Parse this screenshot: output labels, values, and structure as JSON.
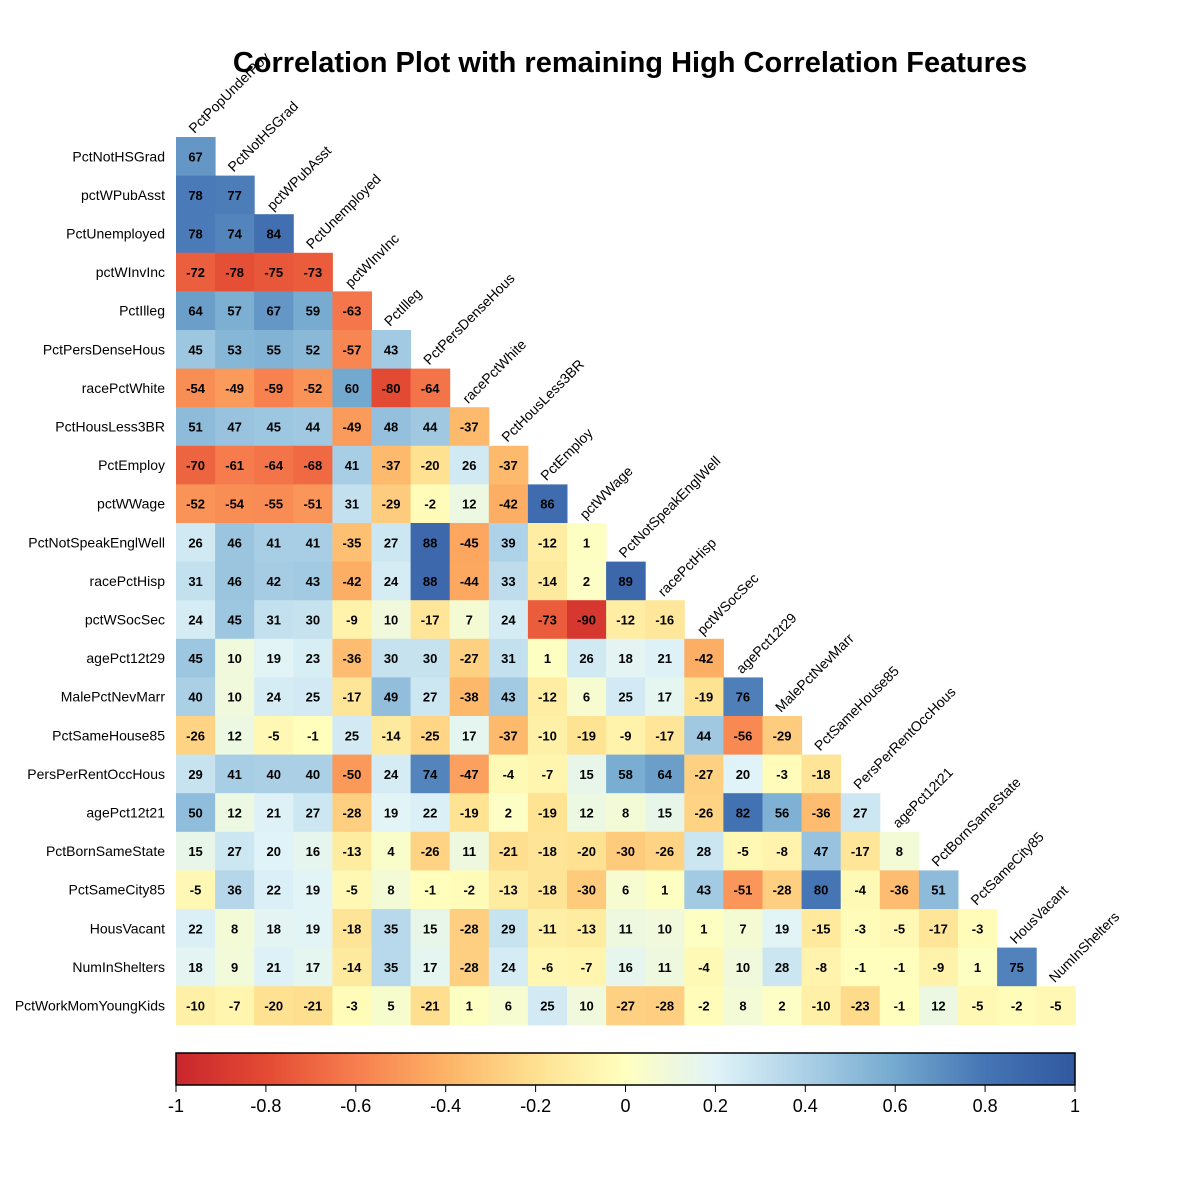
{
  "chart_data": {
    "type": "heatmap",
    "title": "Correlation Plot with remaining High Correlation Features",
    "columns": [
      "PctPopUnderPov",
      "PctNotHSGrad",
      "pctWPubAsst",
      "PctUnemployed",
      "pctWInvInc",
      "PctIlleg",
      "PctPersDenseHous",
      "racePctWhite",
      "PctHousLess3BR",
      "PctEmploy",
      "pctWWage",
      "PctNotSpeakEnglWell",
      "racePctHisp",
      "pctWSocSec",
      "agePct12t29",
      "MalePctNevMarr",
      "PctSameHouse85",
      "PersPerRentOccHous",
      "agePct12t21",
      "PctBornSameState",
      "PctSameCity85",
      "HousVacant",
      "NumInShelters"
    ],
    "rows": [
      "PctNotHSGrad",
      "pctWPubAsst",
      "PctUnemployed",
      "pctWInvInc",
      "PctIlleg",
      "PctPersDenseHous",
      "racePctWhite",
      "PctHousLess3BR",
      "PctEmploy",
      "pctWWage",
      "PctNotSpeakEnglWell",
      "racePctHisp",
      "pctWSocSec",
      "agePct12t29",
      "MalePctNevMarr",
      "PctSameHouse85",
      "PersPerRentOccHous",
      "agePct12t21",
      "PctBornSameState",
      "PctSameCity85",
      "HousVacant",
      "NumInShelters",
      "PctWorkMomYoungKids"
    ],
    "values": [
      [
        67
      ],
      [
        78,
        77
      ],
      [
        78,
        74,
        84
      ],
      [
        -72,
        -78,
        -75,
        -73
      ],
      [
        64,
        57,
        67,
        59,
        -63
      ],
      [
        45,
        53,
        55,
        52,
        -57,
        43
      ],
      [
        -54,
        -49,
        -59,
        -52,
        60,
        -80,
        -64
      ],
      [
        51,
        47,
        45,
        44,
        -49,
        48,
        44,
        -37
      ],
      [
        -70,
        -61,
        -64,
        -68,
        41,
        -37,
        -20,
        26,
        -37
      ],
      [
        -52,
        -54,
        -55,
        -51,
        31,
        -29,
        -2,
        12,
        -42,
        86
      ],
      [
        26,
        46,
        41,
        41,
        -35,
        27,
        88,
        -45,
        39,
        -12,
        1
      ],
      [
        31,
        46,
        42,
        43,
        -42,
        24,
        88,
        -44,
        33,
        -14,
        2,
        89
      ],
      [
        24,
        45,
        31,
        30,
        -9,
        10,
        -17,
        7,
        24,
        -73,
        -90,
        -12,
        -16
      ],
      [
        45,
        10,
        19,
        23,
        -36,
        30,
        30,
        -27,
        31,
        1,
        26,
        18,
        21,
        -42
      ],
      [
        40,
        10,
        24,
        25,
        -17,
        49,
        27,
        -38,
        43,
        -12,
        6,
        25,
        17,
        -19,
        76
      ],
      [
        -26,
        12,
        -5,
        -1,
        25,
        -14,
        -25,
        17,
        -37,
        -10,
        -19,
        -9,
        -17,
        44,
        -56,
        -29
      ],
      [
        29,
        41,
        40,
        40,
        -50,
        24,
        74,
        -47,
        -4,
        -7,
        15,
        58,
        64,
        -27,
        20,
        -3,
        -18
      ],
      [
        50,
        12,
        21,
        27,
        -28,
        19,
        22,
        -19,
        2,
        -19,
        12,
        8,
        15,
        -26,
        82,
        56,
        -36,
        27
      ],
      [
        15,
        27,
        20,
        16,
        -13,
        4,
        -26,
        11,
        -21,
        -18,
        -20,
        -30,
        -26,
        28,
        -5,
        -8,
        47,
        -17,
        8
      ],
      [
        -5,
        36,
        22,
        19,
        -5,
        8,
        -1,
        -2,
        -13,
        -18,
        -30,
        6,
        1,
        43,
        -51,
        -28,
        80,
        -4,
        -36,
        51
      ],
      [
        22,
        8,
        18,
        19,
        -18,
        35,
        15,
        -28,
        29,
        -11,
        -13,
        11,
        10,
        1,
        7,
        19,
        -15,
        -3,
        -5,
        -17,
        -3
      ],
      [
        18,
        9,
        21,
        17,
        -14,
        35,
        17,
        -28,
        24,
        -6,
        -7,
        16,
        11,
        -4,
        10,
        28,
        -8,
        -1,
        -1,
        -9,
        1,
        75
      ],
      [
        -10,
        -7,
        -20,
        -21,
        -3,
        5,
        -21,
        1,
        6,
        25,
        10,
        -27,
        -28,
        -2,
        8,
        2,
        -10,
        -23,
        -1,
        12,
        -5,
        -2,
        -5
      ]
    ],
    "colorbar": {
      "range": [
        -1,
        1
      ],
      "ticks": [
        "-1",
        "-0.8",
        "-0.6",
        "-0.4",
        "-0.2",
        "0",
        "0.2",
        "0.4",
        "0.6",
        "0.8",
        "1"
      ]
    },
    "colors": [
      "#C9262D",
      "#E34A33",
      "#F77E4E",
      "#FDB366",
      "#FEE191",
      "#FFFFBF",
      "#E0F3F8",
      "#ABD0E6",
      "#74A9CF",
      "#4575B4",
      "#3158A0"
    ]
  }
}
